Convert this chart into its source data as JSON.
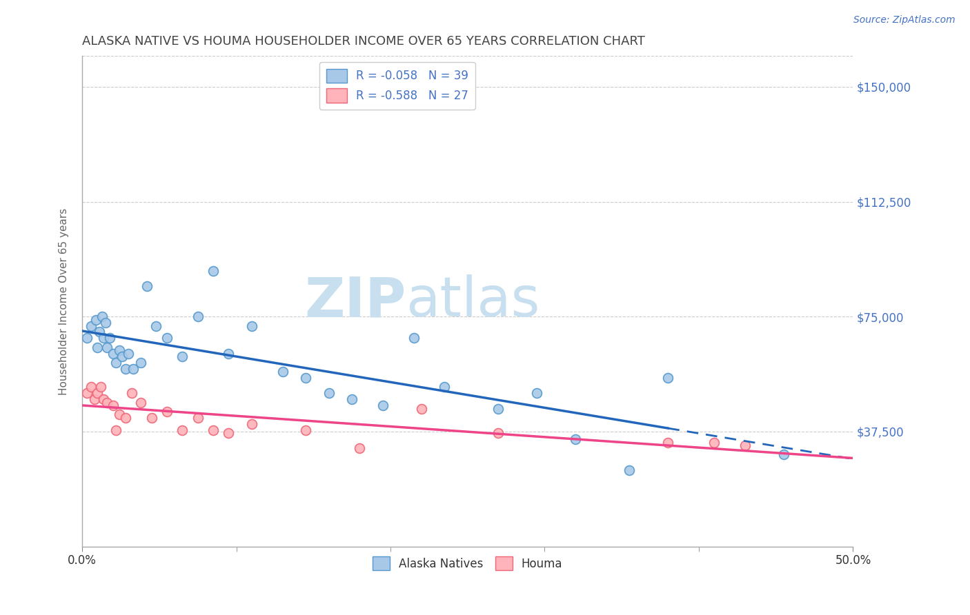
{
  "title": "ALASKA NATIVE VS HOUMA HOUSEHOLDER INCOME OVER 65 YEARS CORRELATION CHART",
  "source": "Source: ZipAtlas.com",
  "ylabel": "Householder Income Over 65 years",
  "ytick_labels": [
    "$37,500",
    "$75,000",
    "$112,500",
    "$150,000"
  ],
  "ytick_vals": [
    37500,
    75000,
    112500,
    150000
  ],
  "ylim": [
    0,
    160000
  ],
  "xlim": [
    0.0,
    0.5
  ],
  "alaska_R": "-0.058",
  "alaska_N": "39",
  "houma_R": "-0.588",
  "houma_N": "27",
  "alaska_color": "#a8c8e8",
  "alaska_edge_color": "#5599cc",
  "houma_color": "#ffb3ba",
  "houma_edge_color": "#ee6677",
  "alaska_line_color": "#2266bb",
  "houma_line_color": "#ee4488",
  "watermark_zip_color": "#c8dff0",
  "watermark_atlas_color": "#c8dff0",
  "background_color": "#ffffff",
  "grid_color": "#cccccc",
  "title_color": "#444444",
  "source_color": "#4472c4",
  "axis_label_color": "#666666",
  "tick_label_color_y": "#4472c4",
  "alaska_x": [
    0.003,
    0.006,
    0.009,
    0.01,
    0.011,
    0.013,
    0.014,
    0.015,
    0.016,
    0.018,
    0.02,
    0.022,
    0.024,
    0.026,
    0.028,
    0.03,
    0.033,
    0.038,
    0.042,
    0.048,
    0.055,
    0.065,
    0.075,
    0.085,
    0.095,
    0.11,
    0.13,
    0.145,
    0.16,
    0.175,
    0.195,
    0.215,
    0.235,
    0.27,
    0.295,
    0.32,
    0.355,
    0.38,
    0.455
  ],
  "alaska_y": [
    68000,
    72000,
    74000,
    65000,
    70000,
    75000,
    68000,
    73000,
    65000,
    68000,
    63000,
    60000,
    64000,
    62000,
    58000,
    63000,
    58000,
    60000,
    85000,
    72000,
    68000,
    62000,
    75000,
    90000,
    63000,
    72000,
    57000,
    55000,
    50000,
    48000,
    46000,
    68000,
    52000,
    45000,
    50000,
    35000,
    25000,
    55000,
    30000
  ],
  "houma_x": [
    0.003,
    0.006,
    0.008,
    0.01,
    0.012,
    0.014,
    0.016,
    0.02,
    0.022,
    0.024,
    0.028,
    0.032,
    0.038,
    0.045,
    0.055,
    0.065,
    0.075,
    0.085,
    0.095,
    0.11,
    0.145,
    0.18,
    0.22,
    0.27,
    0.38,
    0.41,
    0.43
  ],
  "houma_y": [
    50000,
    52000,
    48000,
    50000,
    52000,
    48000,
    47000,
    46000,
    38000,
    43000,
    42000,
    50000,
    47000,
    42000,
    44000,
    38000,
    42000,
    38000,
    37000,
    40000,
    38000,
    32000,
    45000,
    37000,
    34000,
    34000,
    33000
  ],
  "marker_size": 100
}
